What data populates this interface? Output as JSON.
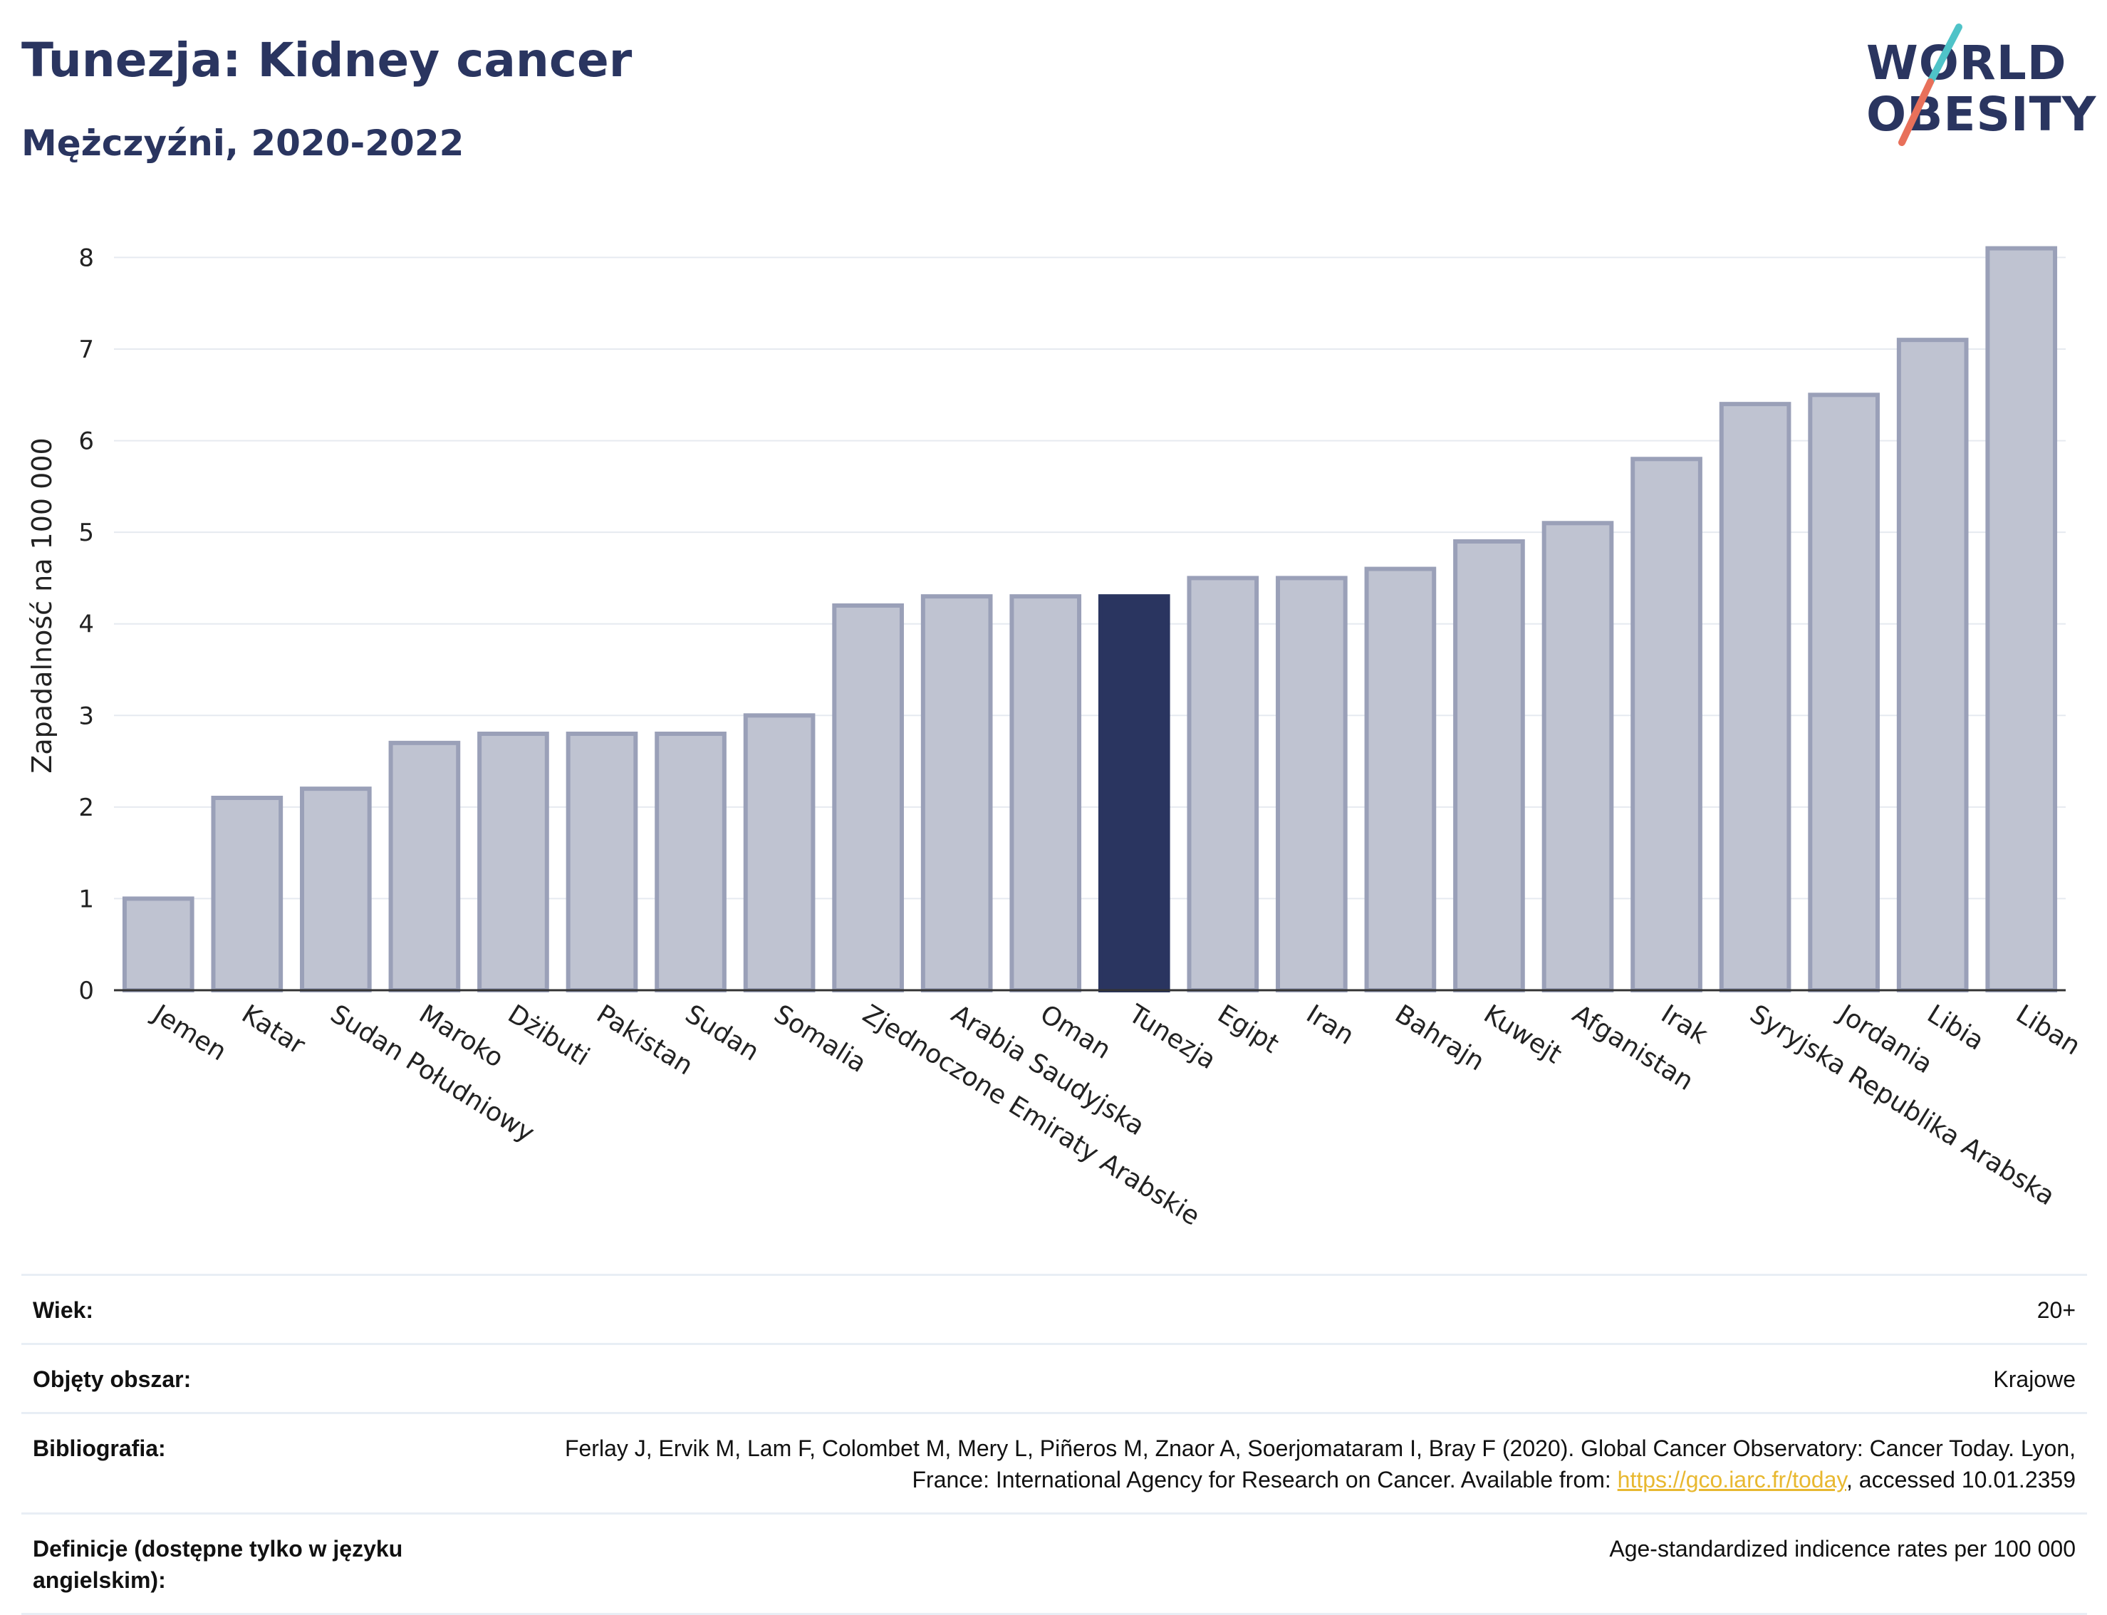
{
  "header": {
    "title": "Tunezja: Kidney cancer",
    "subtitle": "Mężczyźni, 2020-2022"
  },
  "logo": {
    "line1": "WORLD",
    "line2": "OBESITY",
    "colors": [
      "#4fc3c8",
      "#e8705a"
    ]
  },
  "chart_data": {
    "type": "bar",
    "ylabel": "Zapadalność na 100 000",
    "ylim": [
      0,
      8.4
    ],
    "yticks": [
      0,
      1,
      2,
      3,
      4,
      5,
      6,
      7,
      8
    ],
    "grid": true,
    "highlight": "Tunezja",
    "categories": [
      "Jemen",
      "Katar",
      "Sudan Południowy",
      "Maroko",
      "Dżibuti",
      "Pakistan",
      "Sudan",
      "Somalia",
      "Zjednoczone Emiraty Arabskie",
      "Arabia Saudyjska",
      "Oman",
      "Tunezja",
      "Egipt",
      "Iran",
      "Bahrajn",
      "Kuwejt",
      "Afganistan",
      "Irak",
      "Syryjska Republika Arabska",
      "Jordania",
      "Libia",
      "Liban"
    ],
    "values": [
      1.0,
      2.1,
      2.2,
      2.7,
      2.8,
      2.8,
      2.8,
      3.0,
      4.2,
      4.3,
      4.3,
      4.3,
      4.5,
      4.5,
      4.6,
      4.9,
      5.1,
      5.8,
      6.4,
      6.5,
      7.1,
      8.1
    ],
    "colors": {
      "bar": "#bfc3d1",
      "bar_edge": "#9aa0b8",
      "highlight": "#2a3560"
    }
  },
  "info": {
    "rows": [
      {
        "label": "Wiek:",
        "value": "20+"
      },
      {
        "label": "Objęty obszar:",
        "value": "Krajowe"
      },
      {
        "label": "Bibliografia:",
        "value_pre": "Ferlay J, Ervik M, Lam F, Colombet M, Mery L, Piñeros M, Znaor A, Soerjomataram I, Bray F (2020). Global Cancer Observatory: Cancer Today. Lyon, France: International Agency for Research on Cancer. Available from: ",
        "link": "https://gco.iarc.fr/today",
        "value_post": ", accessed 10.01.2359"
      },
      {
        "label": "Definicje (dostępne tylko w języku angielskim):",
        "value": "Age-standardized indicence rates per 100 000"
      }
    ]
  }
}
